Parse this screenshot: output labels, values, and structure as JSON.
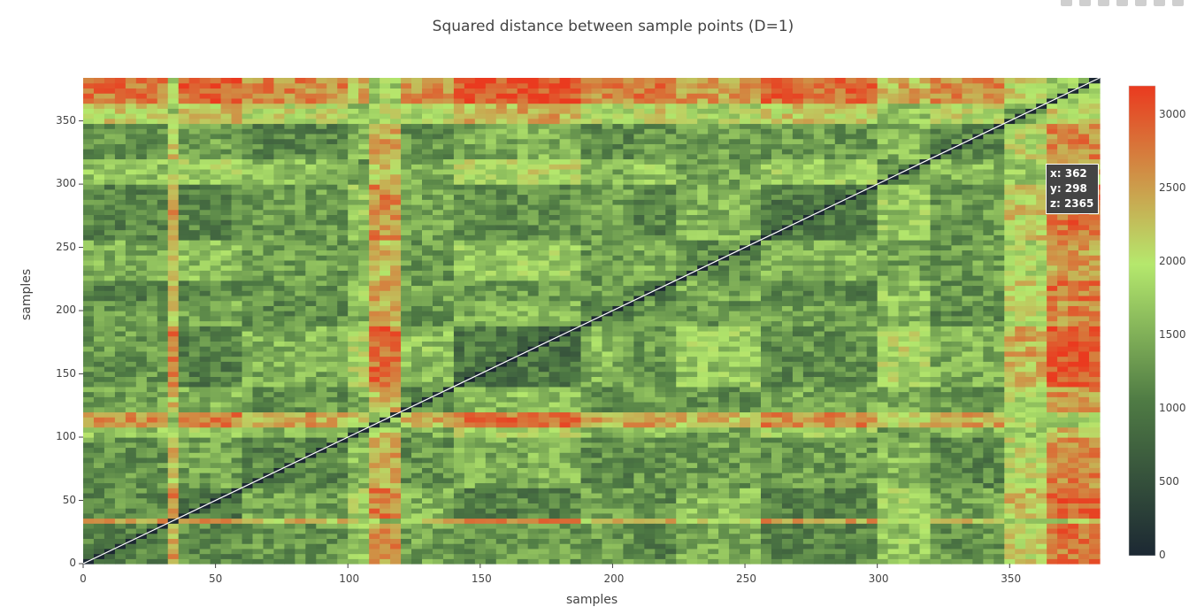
{
  "chart_data": {
    "type": "heatmap",
    "title": "Squared distance between sample points (D=1)",
    "xlabel": "samples",
    "ylabel": "samples",
    "n_samples": 384,
    "xlim": [
      0,
      384
    ],
    "ylim": [
      0,
      384
    ],
    "x_ticks": [
      "0",
      "50",
      "100",
      "150",
      "200",
      "250",
      "300",
      "350"
    ],
    "y_ticks": [
      "0",
      "50",
      "100",
      "150",
      "200",
      "250",
      "300",
      "350"
    ],
    "zlim": [
      0,
      3200
    ],
    "colorbar_ticks": [
      "0",
      "500",
      "1000",
      "1500",
      "2000",
      "2500",
      "3000"
    ],
    "colorscale": [
      "#1c2833",
      "#4f7b44",
      "#b5e86d",
      "#ea3a1f"
    ],
    "diagonal_value": 0,
    "hover": {
      "x": "x: 362",
      "y": "y: 298",
      "z": "z: 2365"
    },
    "cluster_blocks": [
      {
        "range": [
          0,
          31
        ],
        "level": 0.3
      },
      {
        "range": [
          31,
          33
        ],
        "level": 0.62
      },
      {
        "range": [
          33,
          60
        ],
        "level": 0.25
      },
      {
        "range": [
          60,
          98
        ],
        "level": 0.35
      },
      {
        "range": [
          98,
          105
        ],
        "level": 0.45
      },
      {
        "range": [
          105,
          118
        ],
        "level": 0.65
      },
      {
        "range": [
          118,
          138
        ],
        "level": 0.38
      },
      {
        "range": [
          138,
          163
        ],
        "level": 0.22
      },
      {
        "range": [
          163,
          186
        ],
        "level": 0.2
      },
      {
        "range": [
          186,
          205
        ],
        "level": 0.36
      },
      {
        "range": [
          205,
          222
        ],
        "level": 0.3
      },
      {
        "range": [
          222,
          255
        ],
        "level": 0.4
      },
      {
        "range": [
          255,
          300
        ],
        "level": 0.28
      },
      {
        "range": [
          300,
          318
        ],
        "level": 0.45
      },
      {
        "range": [
          318,
          346
        ],
        "level": 0.35
      },
      {
        "range": [
          346,
          362
        ],
        "level": 0.55
      },
      {
        "range": [
          362,
          384
        ],
        "level": 0.7
      }
    ]
  }
}
